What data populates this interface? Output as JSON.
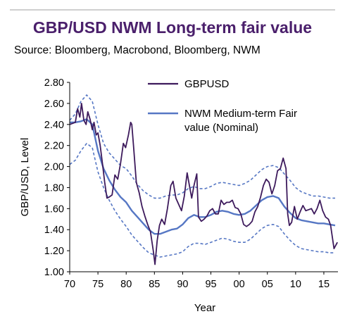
{
  "header": {
    "title": "GBP/USD NWM Long-term fair value",
    "source": "Source:  Bloomberg, Macrobond, Bloomberg, NWM"
  },
  "colors": {
    "gbpusd": "#3d1a5c",
    "fair_value": "#5677c4",
    "bands": "#5677c4",
    "title": "#4a1f6b"
  },
  "chart_data": {
    "type": "line",
    "xlabel": "Year",
    "ylabel": "GBP/USD, Level",
    "xlim": [
      1970,
      2017.5
    ],
    "ylim": [
      1.0,
      2.8
    ],
    "x_tick_values": [
      1970,
      1975,
      1980,
      1985,
      1990,
      1995,
      2000,
      2005,
      2010,
      2015
    ],
    "x_tick_labels": [
      "70",
      "75",
      "80",
      "85",
      "90",
      "95",
      "00",
      "05",
      "10",
      "15"
    ],
    "y_ticks": [
      "1.00",
      "1.20",
      "1.40",
      "1.60",
      "1.80",
      "2.00",
      "2.20",
      "2.40",
      "2.60",
      "2.80"
    ],
    "legend": {
      "position": "top-right",
      "entries": [
        "GBPUSD",
        "NWM Medium-term Fair value (Nominal)"
      ]
    },
    "series": [
      {
        "name": "GBPUSD",
        "style": "solid-dark",
        "points": [
          [
            1970,
            2.4
          ],
          [
            1970.5,
            2.41
          ],
          [
            1971,
            2.42
          ],
          [
            1971.4,
            2.55
          ],
          [
            1971.8,
            2.47
          ],
          [
            1972.1,
            2.6
          ],
          [
            1972.5,
            2.44
          ],
          [
            1972.9,
            2.4
          ],
          [
            1973.2,
            2.52
          ],
          [
            1973.6,
            2.45
          ],
          [
            1974,
            2.35
          ],
          [
            1974.3,
            2.42
          ],
          [
            1974.7,
            2.3
          ],
          [
            1975,
            2.32
          ],
          [
            1975.4,
            2.2
          ],
          [
            1975.8,
            2.03
          ],
          [
            1976.2,
            1.85
          ],
          [
            1976.6,
            1.7
          ],
          [
            1977,
            1.71
          ],
          [
            1977.5,
            1.73
          ],
          [
            1978,
            1.92
          ],
          [
            1978.5,
            1.88
          ],
          [
            1979,
            2.03
          ],
          [
            1979.5,
            2.22
          ],
          [
            1979.9,
            2.18
          ],
          [
            1980.4,
            2.3
          ],
          [
            1980.8,
            2.42
          ],
          [
            1981,
            2.4
          ],
          [
            1981.3,
            2.2
          ],
          [
            1981.8,
            1.85
          ],
          [
            1982.3,
            1.75
          ],
          [
            1982.8,
            1.62
          ],
          [
            1983.3,
            1.53
          ],
          [
            1983.8,
            1.45
          ],
          [
            1984.3,
            1.38
          ],
          [
            1984.8,
            1.2
          ],
          [
            1985.1,
            1.07
          ],
          [
            1985.5,
            1.3
          ],
          [
            1985.9,
            1.44
          ],
          [
            1986.3,
            1.5
          ],
          [
            1986.8,
            1.45
          ],
          [
            1987.3,
            1.6
          ],
          [
            1987.9,
            1.82
          ],
          [
            1988.3,
            1.86
          ],
          [
            1988.8,
            1.7
          ],
          [
            1989.3,
            1.64
          ],
          [
            1989.8,
            1.58
          ],
          [
            1990.3,
            1.72
          ],
          [
            1990.8,
            1.94
          ],
          [
            1991.2,
            1.82
          ],
          [
            1991.6,
            1.7
          ],
          [
            1992,
            1.82
          ],
          [
            1992.5,
            1.93
          ],
          [
            1992.8,
            1.52
          ],
          [
            1993.3,
            1.48
          ],
          [
            1993.8,
            1.5
          ],
          [
            1994.3,
            1.53
          ],
          [
            1994.8,
            1.58
          ],
          [
            1995.3,
            1.6
          ],
          [
            1995.8,
            1.55
          ],
          [
            1996.3,
            1.55
          ],
          [
            1996.8,
            1.68
          ],
          [
            1997.3,
            1.64
          ],
          [
            1997.8,
            1.66
          ],
          [
            1998.3,
            1.66
          ],
          [
            1998.8,
            1.68
          ],
          [
            1999.3,
            1.61
          ],
          [
            1999.8,
            1.6
          ],
          [
            2000.3,
            1.55
          ],
          [
            2000.8,
            1.45
          ],
          [
            2001.3,
            1.43
          ],
          [
            2001.8,
            1.45
          ],
          [
            2002.3,
            1.48
          ],
          [
            2002.8,
            1.57
          ],
          [
            2003.3,
            1.62
          ],
          [
            2003.8,
            1.71
          ],
          [
            2004.3,
            1.82
          ],
          [
            2004.8,
            1.88
          ],
          [
            2005.3,
            1.85
          ],
          [
            2005.8,
            1.74
          ],
          [
            2006.3,
            1.82
          ],
          [
            2006.8,
            1.96
          ],
          [
            2007.3,
            1.98
          ],
          [
            2007.8,
            2.08
          ],
          [
            2008.3,
            1.98
          ],
          [
            2008.6,
            1.55
          ],
          [
            2008.9,
            1.44
          ],
          [
            2009.3,
            1.47
          ],
          [
            2009.8,
            1.62
          ],
          [
            2010.3,
            1.5
          ],
          [
            2010.8,
            1.57
          ],
          [
            2011.3,
            1.63
          ],
          [
            2011.8,
            1.58
          ],
          [
            2012.3,
            1.59
          ],
          [
            2012.8,
            1.6
          ],
          [
            2013.3,
            1.55
          ],
          [
            2013.8,
            1.6
          ],
          [
            2014.3,
            1.68
          ],
          [
            2014.8,
            1.58
          ],
          [
            2015.3,
            1.52
          ],
          [
            2015.8,
            1.5
          ],
          [
            2016.2,
            1.44
          ],
          [
            2016.5,
            1.33
          ],
          [
            2016.8,
            1.22
          ],
          [
            2017.1,
            1.25
          ],
          [
            2017.4,
            1.28
          ]
        ]
      },
      {
        "name": "NWM Medium-term Fair value (Nominal)",
        "style": "solid-light",
        "points": [
          [
            1970,
            2.42
          ],
          [
            1971,
            2.42
          ],
          [
            1972,
            2.43
          ],
          [
            1973,
            2.45
          ],
          [
            1974,
            2.4
          ],
          [
            1975,
            2.15
          ],
          [
            1976,
            1.98
          ],
          [
            1977,
            1.87
          ],
          [
            1978,
            1.78
          ],
          [
            1979,
            1.71
          ],
          [
            1980,
            1.66
          ],
          [
            1981,
            1.58
          ],
          [
            1982,
            1.52
          ],
          [
            1983,
            1.46
          ],
          [
            1984,
            1.4
          ],
          [
            1985,
            1.36
          ],
          [
            1986,
            1.36
          ],
          [
            1987,
            1.38
          ],
          [
            1988,
            1.4
          ],
          [
            1989,
            1.41
          ],
          [
            1990,
            1.45
          ],
          [
            1991,
            1.51
          ],
          [
            1992,
            1.54
          ],
          [
            1993,
            1.52
          ],
          [
            1994,
            1.52
          ],
          [
            1995,
            1.54
          ],
          [
            1996,
            1.57
          ],
          [
            1997,
            1.58
          ],
          [
            1998,
            1.57
          ],
          [
            1999,
            1.55
          ],
          [
            2000,
            1.54
          ],
          [
            2001,
            1.55
          ],
          [
            2002,
            1.58
          ],
          [
            2003,
            1.63
          ],
          [
            2004,
            1.68
          ],
          [
            2005,
            1.71
          ],
          [
            2006,
            1.72
          ],
          [
            2007,
            1.7
          ],
          [
            2008,
            1.62
          ],
          [
            2009,
            1.56
          ],
          [
            2010,
            1.51
          ],
          [
            2011,
            1.49
          ],
          [
            2012,
            1.48
          ],
          [
            2013,
            1.47
          ],
          [
            2014,
            1.46
          ],
          [
            2015,
            1.46
          ],
          [
            2016,
            1.45
          ],
          [
            2017,
            1.44
          ]
        ]
      },
      {
        "name": "",
        "style": "dashed-upper",
        "points": [
          [
            1970,
            2.44
          ],
          [
            1971,
            2.5
          ],
          [
            1972,
            2.62
          ],
          [
            1973,
            2.68
          ],
          [
            1974,
            2.62
          ],
          [
            1975,
            2.4
          ],
          [
            1976,
            2.22
          ],
          [
            1977,
            2.13
          ],
          [
            1978,
            2.07
          ],
          [
            1979,
            2.01
          ],
          [
            1980,
            1.98
          ],
          [
            1981,
            1.91
          ],
          [
            1982,
            1.83
          ],
          [
            1983,
            1.77
          ],
          [
            1984,
            1.73
          ],
          [
            1985,
            1.7
          ],
          [
            1986,
            1.7
          ],
          [
            1987,
            1.72
          ],
          [
            1988,
            1.73
          ],
          [
            1989,
            1.73
          ],
          [
            1990,
            1.75
          ],
          [
            1991,
            1.79
          ],
          [
            1992,
            1.81
          ],
          [
            1993,
            1.79
          ],
          [
            1994,
            1.79
          ],
          [
            1995,
            1.81
          ],
          [
            1996,
            1.84
          ],
          [
            1997,
            1.85
          ],
          [
            1998,
            1.84
          ],
          [
            1999,
            1.83
          ],
          [
            2000,
            1.82
          ],
          [
            2001,
            1.84
          ],
          [
            2002,
            1.87
          ],
          [
            2003,
            1.92
          ],
          [
            2004,
            1.97
          ],
          [
            2005,
            2.0
          ],
          [
            2006,
            2.01
          ],
          [
            2007,
            1.99
          ],
          [
            2008,
            1.93
          ],
          [
            2009,
            1.87
          ],
          [
            2010,
            1.8
          ],
          [
            2011,
            1.76
          ],
          [
            2012,
            1.74
          ],
          [
            2013,
            1.72
          ],
          [
            2014,
            1.72
          ],
          [
            2015,
            1.71
          ],
          [
            2016,
            1.7
          ],
          [
            2017,
            1.7
          ]
        ]
      },
      {
        "name": "",
        "style": "dashed-lower",
        "points": [
          [
            1970,
            2.02
          ],
          [
            1971,
            2.06
          ],
          [
            1972,
            2.15
          ],
          [
            1973,
            2.22
          ],
          [
            1974,
            2.18
          ],
          [
            1975,
            1.95
          ],
          [
            1976,
            1.8
          ],
          [
            1977,
            1.68
          ],
          [
            1978,
            1.58
          ],
          [
            1979,
            1.5
          ],
          [
            1980,
            1.43
          ],
          [
            1981,
            1.35
          ],
          [
            1982,
            1.29
          ],
          [
            1983,
            1.23
          ],
          [
            1984,
            1.18
          ],
          [
            1985,
            1.16
          ],
          [
            1986,
            1.14
          ],
          [
            1987,
            1.15
          ],
          [
            1988,
            1.16
          ],
          [
            1989,
            1.17
          ],
          [
            1990,
            1.19
          ],
          [
            1991,
            1.24
          ],
          [
            1992,
            1.27
          ],
          [
            1993,
            1.27
          ],
          [
            1994,
            1.26
          ],
          [
            1995,
            1.28
          ],
          [
            1996,
            1.3
          ],
          [
            1997,
            1.32
          ],
          [
            1998,
            1.31
          ],
          [
            1999,
            1.29
          ],
          [
            2000,
            1.28
          ],
          [
            2001,
            1.28
          ],
          [
            2002,
            1.31
          ],
          [
            2003,
            1.36
          ],
          [
            2004,
            1.41
          ],
          [
            2005,
            1.44
          ],
          [
            2006,
            1.45
          ],
          [
            2007,
            1.43
          ],
          [
            2008,
            1.36
          ],
          [
            2009,
            1.3
          ],
          [
            2010,
            1.25
          ],
          [
            2011,
            1.22
          ],
          [
            2012,
            1.21
          ],
          [
            2013,
            1.2
          ],
          [
            2014,
            1.19
          ],
          [
            2015,
            1.19
          ],
          [
            2016,
            1.18
          ],
          [
            2017,
            1.18
          ]
        ]
      }
    ]
  }
}
